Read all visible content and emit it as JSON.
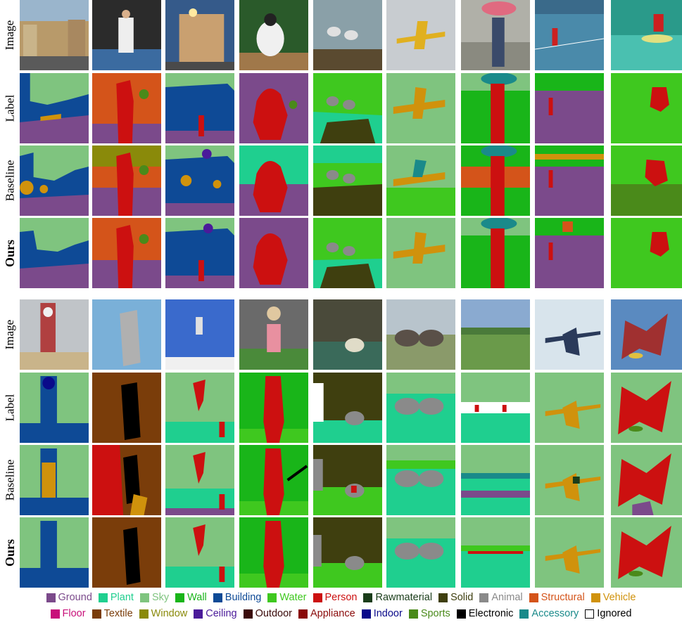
{
  "row_labels": {
    "image": "Image",
    "label": "Label",
    "baseline": "Baseline",
    "ours": "Ours"
  },
  "legend": [
    {
      "name": "Ground",
      "color": "#7b4a8b"
    },
    {
      "name": "Plant",
      "color": "#1fcf8f"
    },
    {
      "name": "Sky",
      "color": "#7fc47f"
    },
    {
      "name": "Wall",
      "color": "#19b519"
    },
    {
      "name": "Building",
      "color": "#0e4a96"
    },
    {
      "name": "Water",
      "color": "#3fc81f"
    },
    {
      "name": "Person",
      "color": "#cc1010"
    },
    {
      "name": "Rawmaterial",
      "color": "#1a3d1a"
    },
    {
      "name": "Solid",
      "color": "#3f3f0f"
    },
    {
      "name": "Animal",
      "color": "#8a8a8a"
    },
    {
      "name": "Structural",
      "color": "#d4541a"
    },
    {
      "name": "Vehicle",
      "color": "#d0920c"
    },
    {
      "name": "Floor",
      "color": "#c8107a"
    },
    {
      "name": "Textile",
      "color": "#7a3d0a"
    },
    {
      "name": "Window",
      "color": "#8a8a0a"
    },
    {
      "name": "Ceiling",
      "color": "#4a1a9a"
    },
    {
      "name": "Outdoor",
      "color": "#3a0a0a"
    },
    {
      "name": "Appliance",
      "color": "#8a0a0a"
    },
    {
      "name": "Indoor",
      "color": "#0a0a8a"
    },
    {
      "name": "Sports",
      "color": "#4a8a1a"
    },
    {
      "name": "Electronic",
      "color": "#000000"
    },
    {
      "name": "Accessory",
      "color": "#1a8a8a"
    },
    {
      "name": "Ignored",
      "color": "#ffffff"
    }
  ]
}
